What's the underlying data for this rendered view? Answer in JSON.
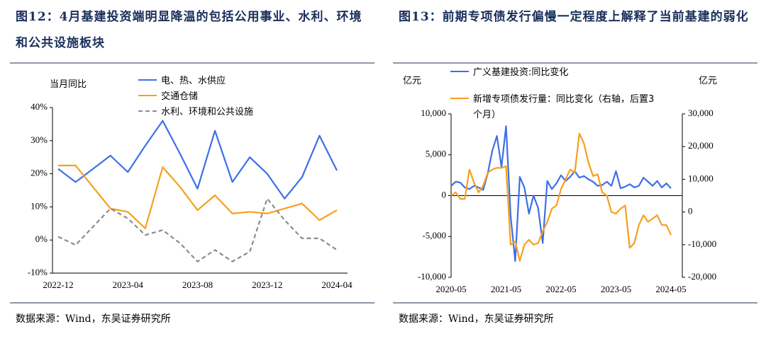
{
  "chart_data": [
    {
      "type": "line",
      "title": "图12：4月基建投资端明显降温的包括公用事业、水利、环境和公共设施板块",
      "y_label": "当月同比",
      "source": "数据来源：Wind，东吴证券研究所",
      "categories": [
        "2022-12",
        null,
        null,
        null,
        "2023-04",
        null,
        null,
        null,
        "2023-08",
        null,
        null,
        null,
        "2023-12",
        null,
        null,
        null,
        "2024-04"
      ],
      "ylim": [
        -10,
        40
      ],
      "yticks": [
        {
          "value": 40,
          "label": "40%"
        },
        {
          "value": 30,
          "label": "30%"
        },
        {
          "value": 20,
          "label": "20%"
        },
        {
          "value": 10,
          "label": "10%"
        },
        {
          "value": 0,
          "label": "0%"
        },
        {
          "value": -10,
          "label": "-10%"
        }
      ],
      "series": [
        {
          "name": "电、热、水供应",
          "color": "#3d6fe8",
          "dash": false,
          "values": [
            21.5,
            17.5,
            21.5,
            25.5,
            20.5,
            28.5,
            36,
            26,
            15.5,
            33,
            17.5,
            25,
            20,
            12.5,
            19,
            31.5,
            21
          ]
        },
        {
          "name": "交通仓储",
          "color": "#f5a11c",
          "dash": false,
          "values": [
            22.5,
            22.5,
            16,
            9.5,
            8.5,
            3.5,
            22,
            16,
            9,
            13.5,
            8,
            8.5,
            8,
            9.5,
            11,
            6,
            9
          ]
        },
        {
          "name": "水利、环境和公共设施",
          "color": "#8c8c8c",
          "dash": true,
          "values": [
            1,
            -1.5,
            4,
            9.5,
            6.5,
            1.5,
            3,
            -1,
            -6.5,
            -3,
            -6.5,
            -3.5,
            12.5,
            6,
            0.5,
            0.5,
            -3
          ]
        }
      ]
    },
    {
      "type": "line",
      "title": "图13：前期专项债发行偏慢一定程度上解释了当前基建的弱化",
      "y_label": "亿元",
      "y2_label": "亿元",
      "source": "数据来源：Wind，东吴证券研究所",
      "categories": [
        "2020-05",
        null,
        null,
        null,
        null,
        null,
        null,
        null,
        null,
        null,
        null,
        null,
        "2021-05",
        null,
        null,
        null,
        null,
        null,
        null,
        null,
        null,
        null,
        null,
        null,
        "2022-05",
        null,
        null,
        null,
        null,
        null,
        null,
        null,
        null,
        null,
        null,
        null,
        "2023-05",
        null,
        null,
        null,
        null,
        null,
        null,
        null,
        null,
        null,
        null,
        null,
        "2024-05"
      ],
      "ylim": [
        -10000,
        10000
      ],
      "yticks": [
        {
          "value": 10000,
          "label": "10,000"
        },
        {
          "value": 5000,
          "label": "5,000"
        },
        0,
        {
          "value": -5000,
          "label": "-5,000"
        },
        {
          "value": -10000,
          "label": "-10,000"
        }
      ],
      "y2lim": [
        -20000,
        30000
      ],
      "y2ticks": [
        {
          "value": 30000,
          "label": "30,000"
        },
        {
          "value": 20000,
          "label": "20,000"
        },
        {
          "value": 10000,
          "label": "10,000"
        },
        0,
        {
          "value": -10000,
          "label": "-10,000"
        },
        {
          "value": -20000,
          "label": "-20,000"
        }
      ],
      "series": [
        {
          "name": "广义基建投资:同比变化",
          "color": "#3d6fe8",
          "dash": false,
          "axis": "y",
          "values": [
            1200,
            1700,
            1600,
            1000,
            800,
            1200,
            1000,
            700,
            2700,
            5500,
            7300,
            3500,
            8500,
            -2500,
            -8000,
            2300,
            1000,
            -2200,
            0,
            -1500,
            -5800,
            1800,
            800,
            1500,
            2500,
            1800,
            2300,
            3000,
            2200,
            2400,
            2000,
            1700,
            1200,
            1300,
            1700,
            1200,
            3000,
            900,
            1100,
            1400,
            1000,
            1200,
            2200,
            1700,
            1200,
            1800,
            1000,
            1500,
            900
          ]
        },
        {
          "name": "新增专项债发行量：同比变化（右轴，后置3个月）",
          "color": "#f5a11c",
          "dash": false,
          "axis": "y2",
          "values": [
            5000,
            6000,
            4000,
            4000,
            13000,
            9000,
            6000,
            8000,
            12000,
            13000,
            13500,
            13500,
            14000,
            -10000,
            -9000,
            -15000,
            -10000,
            -8500,
            -10000,
            -9500,
            -6000,
            -3000,
            1000,
            2000,
            7000,
            10000,
            13000,
            12000,
            24000,
            21000,
            15000,
            11000,
            11500,
            6000,
            5000,
            0,
            -500,
            1000,
            2000,
            -11000,
            -9500,
            -4000,
            -1000,
            -3000,
            -2000,
            -1000,
            -4000,
            -4000,
            -7000
          ]
        }
      ]
    }
  ]
}
